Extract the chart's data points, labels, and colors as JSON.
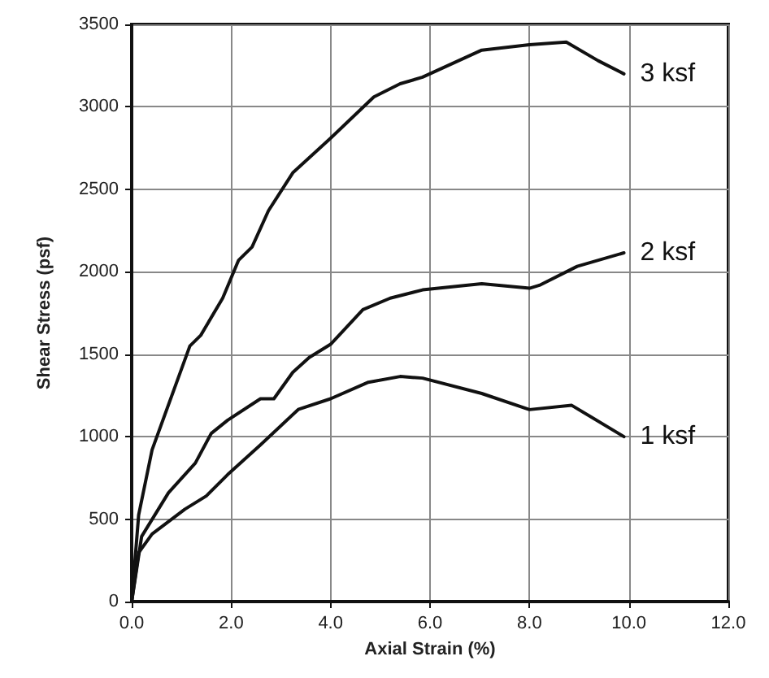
{
  "chart_data": {
    "type": "line",
    "xlabel": "Axial Strain (%)",
    "ylabel": "Shear Stress (psf)",
    "xlim": [
      0,
      12
    ],
    "xticks": [
      {
        "value": 0,
        "label": "0.0"
      },
      {
        "value": 2,
        "label": "2.0"
      },
      {
        "value": 4,
        "label": "4.0"
      },
      {
        "value": 6,
        "label": "6.0"
      },
      {
        "value": 8,
        "label": "8.0"
      },
      {
        "value": 10,
        "label": "10.0"
      },
      {
        "value": 12,
        "label": "12.0"
      }
    ],
    "ylim": [
      0,
      3500
    ],
    "yticks": [
      0,
      500,
      1000,
      1500,
      2000,
      2500,
      3000,
      3500
    ],
    "grid": true,
    "legend": false,
    "marker": "none",
    "line_style": "solid",
    "series": [
      {
        "name": "3 ksf",
        "color": "#111111",
        "x": [
          0,
          0.14,
          0.41,
          1.17,
          1.39,
          1.83,
          2.15,
          2.42,
          2.75,
          3.24,
          4.0,
          4.87,
          5.4,
          5.85,
          7.04,
          8.0,
          8.74,
          9.38,
          9.9
        ],
        "values": [
          0,
          525,
          920,
          1550,
          1615,
          1840,
          2070,
          2150,
          2370,
          2600,
          2810,
          3060,
          3140,
          3180,
          3344,
          3377,
          3393,
          3280,
          3200
        ]
      },
      {
        "name": "2 ksf",
        "color": "#111111",
        "x": [
          0,
          0.2,
          0.74,
          1.28,
          1.6,
          1.93,
          2.59,
          2.86,
          3.24,
          3.57,
          4.0,
          4.65,
          5.2,
          5.85,
          7.04,
          8.0,
          8.2,
          8.96,
          9.9
        ],
        "values": [
          0,
          395,
          660,
          840,
          1020,
          1100,
          1230,
          1230,
          1390,
          1480,
          1560,
          1770,
          1840,
          1890,
          1928,
          1900,
          1918,
          2033,
          2115
        ]
      },
      {
        "name": "1 ksf",
        "color": "#111111",
        "x": [
          0,
          0.14,
          0.41,
          1.07,
          1.5,
          1.93,
          2.59,
          3.35,
          4.0,
          4.76,
          5.4,
          5.85,
          7.04,
          8.0,
          8.85,
          9.9
        ],
        "values": [
          0,
          296,
          410,
          560,
          640,
          770,
          950,
          1165,
          1230,
          1330,
          1365,
          1355,
          1262,
          1164,
          1190,
          1000
        ]
      }
    ]
  }
}
